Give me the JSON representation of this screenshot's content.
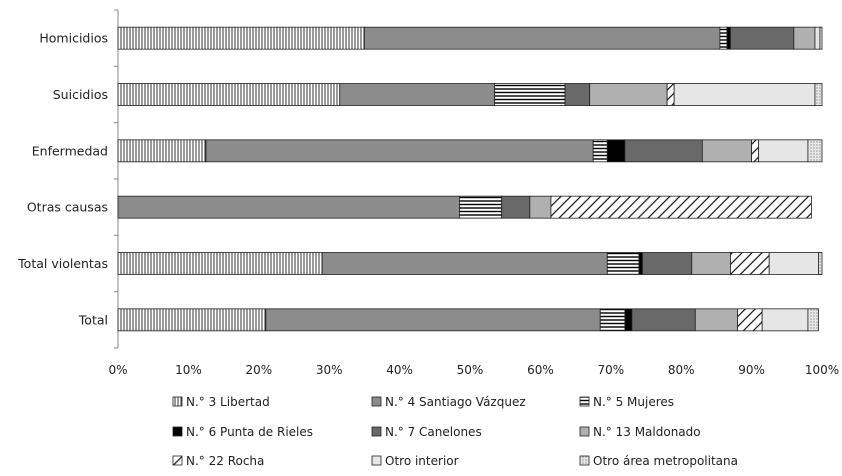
{
  "chart_data": {
    "type": "bar",
    "orientation": "horizontal",
    "stacked": "100%",
    "title": "",
    "xlabel": "",
    "ylabel": "",
    "xlim": [
      0,
      100
    ],
    "grid": false,
    "legend_position": "bottom",
    "categories": [
      "Homicidios",
      "Suicidios",
      "Enfermedad",
      "Otras causas",
      "Total violentas",
      "Total"
    ],
    "x_ticks": [
      "0%",
      "10%",
      "20%",
      "30%",
      "40%",
      "50%",
      "60%",
      "70%",
      "80%",
      "90%",
      "100%"
    ],
    "series": [
      {
        "name": "N.° 3 Libertad",
        "pattern": "vertical-lines",
        "color": "#ffffff",
        "values": [
          35,
          31.5,
          12.5,
          0,
          29,
          21
        ]
      },
      {
        "name": "N.° 4 Santiago Vázquez",
        "pattern": "solid",
        "color": "#8c8c8c",
        "values": [
          50.5,
          22,
          55,
          48.5,
          40.5,
          47.5
        ]
      },
      {
        "name": "N.° 5 Mujeres",
        "pattern": "horizontal-lines",
        "color": "#ffffff",
        "values": [
          1,
          10,
          2,
          6,
          4.5,
          3.5
        ]
      },
      {
        "name": "N.° 6 Punta de Rieles",
        "pattern": "solid",
        "color": "#000000",
        "values": [
          0.5,
          0,
          2.5,
          0,
          0.5,
          1
        ]
      },
      {
        "name": "N.° 7 Canelones",
        "pattern": "solid",
        "color": "#696969",
        "values": [
          9,
          3.5,
          11,
          4,
          7,
          9
        ]
      },
      {
        "name": "N.° 13 Maldonado",
        "pattern": "solid",
        "color": "#b0b0b0",
        "values": [
          3,
          11,
          7,
          3,
          5.5,
          6
        ]
      },
      {
        "name": "N.° 22 Rocha",
        "pattern": "diagonal-lines",
        "color": "#ffffff",
        "values": [
          0,
          1,
          1,
          37,
          5.5,
          3.5
        ]
      },
      {
        "name": "Otro interior",
        "pattern": "solid",
        "color": "#e6e6e6",
        "values": [
          0.7,
          20,
          7,
          0,
          7,
          6.5
        ]
      },
      {
        "name": "Otro área metropolitana",
        "pattern": "dots",
        "color": "#d9d9d9",
        "values": [
          0.3,
          1,
          2,
          0,
          0.5,
          1.5
        ]
      }
    ]
  }
}
